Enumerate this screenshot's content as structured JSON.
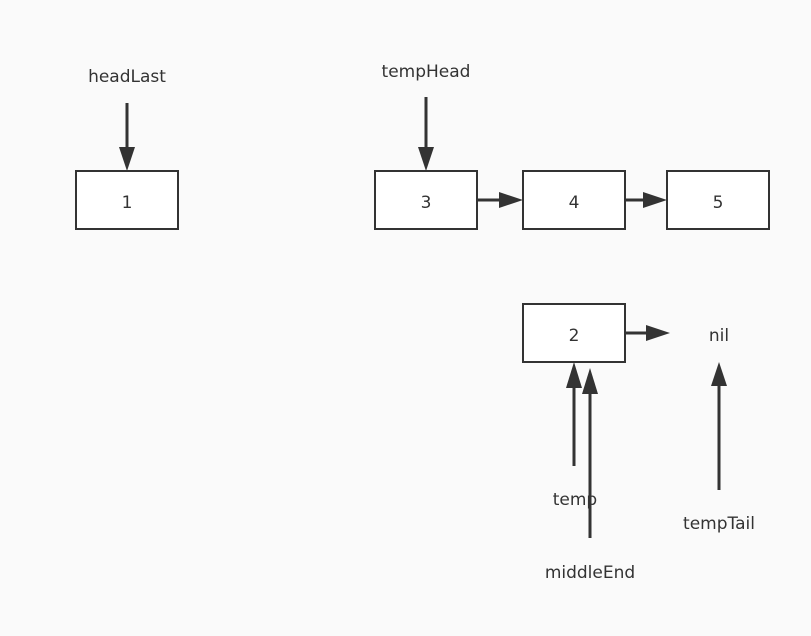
{
  "nodes": {
    "n1": "1",
    "n3": "3",
    "n4": "4",
    "n5": "5",
    "n2": "2"
  },
  "labels": {
    "head_last": "headLast",
    "temp_head": "tempHead",
    "nil": "nil",
    "temp": "temp",
    "temp_tail": "tempTail",
    "middle_end": "middleEnd"
  },
  "colors": {
    "background": "#fafafa",
    "stroke": "#333333",
    "node_fill": "#ffffff"
  }
}
